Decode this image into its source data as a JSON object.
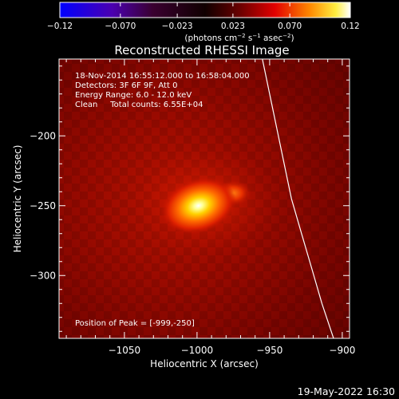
{
  "chart_data": {
    "type": "heatmap",
    "title": "Reconstructed RHESSI Image",
    "xlabel": "Heliocentric X (arcsec)",
    "ylabel": "Heliocentric Y (arcsec)",
    "xlim": [
      -1095,
      -895
    ],
    "ylim": [
      -345,
      -145
    ],
    "xticks": [
      -1050,
      -1000,
      -950,
      -900
    ],
    "yticks": [
      -200,
      -250,
      -300
    ],
    "xtick_labels": [
      "−1050",
      "−1000",
      "−950",
      "−900"
    ],
    "ytick_labels": [
      "−200",
      "−250",
      "−300"
    ],
    "colorbar": {
      "min": -0.12,
      "max": 0.12,
      "ticks": [
        -0.12,
        -0.07,
        -0.023,
        0.023,
        0.07,
        0.12
      ],
      "tick_labels": [
        "−0.12",
        "−0.070",
        "−0.023",
        "0.023",
        "0.070",
        "0.12"
      ],
      "label_main": "(photons cm",
      "label_exp1": "−2",
      "label_mid1": " s",
      "label_exp2": "−1",
      "label_mid2": " asec",
      "label_exp3": "−2",
      "label_end": ")"
    },
    "annotations": [
      "18-Nov-2014 16:55:12.000 to 16:58:04.000",
      "Detectors: 3F 6F 9F, Att 0",
      "Energy Range: 6.0 - 12.0 keV",
      "Clean     Total counts: 6.55E+04"
    ],
    "peak_label": "Position of Peak = [-999,-250]",
    "peak": {
      "x": -999,
      "y": -250
    },
    "sources": [
      {
        "x": -999,
        "y": -250,
        "intensity": 0.12
      },
      {
        "x": -975,
        "y": -241,
        "intensity": 0.05
      }
    ],
    "limb_curve": [
      {
        "x": -955,
        "y": -145
      },
      {
        "x": -950,
        "y": -170
      },
      {
        "x": -945,
        "y": -195
      },
      {
        "x": -940,
        "y": -220
      },
      {
        "x": -935,
        "y": -245
      },
      {
        "x": -928,
        "y": -270
      },
      {
        "x": -921,
        "y": -295
      },
      {
        "x": -914,
        "y": -320
      },
      {
        "x": -906,
        "y": -345
      }
    ]
  },
  "footer": {
    "timestamp": "19-May-2022 16:30"
  },
  "colors": {
    "background": "#000000",
    "axis": "#ffffff",
    "limb": "#ffffff"
  }
}
